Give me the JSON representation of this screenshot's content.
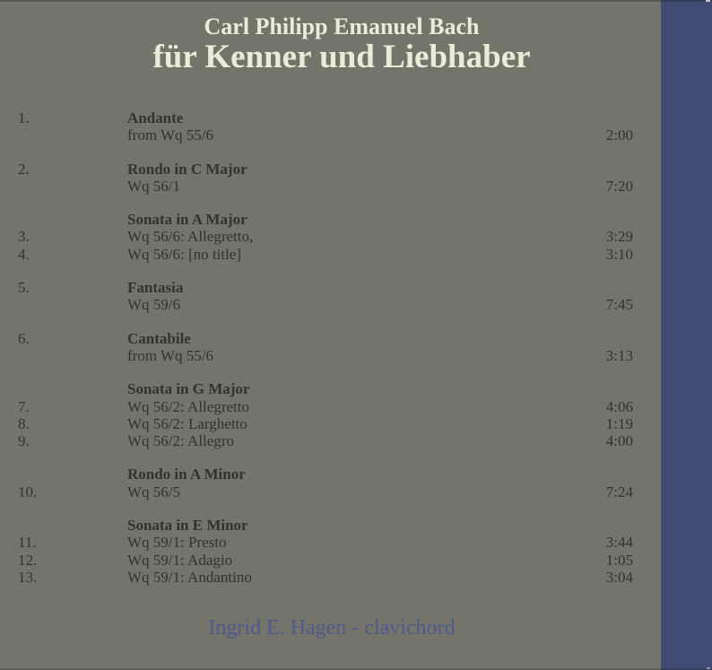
{
  "album": {
    "artist_line": "Carl Philipp Emanuel Bach",
    "title_line": "für Kenner und Liebhaber",
    "credit": "Ingrid E. Hagen - clavichord"
  },
  "colors": {
    "background": "#74746a",
    "stripe": "#404a72",
    "title_text": "#e9ecd8",
    "track_text": "#32332c",
    "credit_text": "#4e5a8e"
  },
  "blocks": [
    {
      "heading": {
        "number": "1.",
        "title": "Andante"
      },
      "rows": [
        {
          "number": "",
          "text": "from Wq 55/6",
          "time": "2:00"
        }
      ]
    },
    {
      "heading": {
        "number": "2.",
        "title": "Rondo in C Major"
      },
      "rows": [
        {
          "number": "",
          "text": "Wq 56/1",
          "time": "7:20"
        }
      ]
    },
    {
      "heading": {
        "number": "",
        "title": "Sonata in A Major"
      },
      "rows": [
        {
          "number": "3.",
          "text": "Wq 56/6: Allegretto,",
          "time": "3:29"
        },
        {
          "number": "4.",
          "text": "Wq 56/6: [no title]",
          "time": "3:10"
        }
      ]
    },
    {
      "heading": {
        "number": "5.",
        "title": "Fantasia"
      },
      "rows": [
        {
          "number": "",
          "text": "Wq 59/6",
          "time": "7:45"
        }
      ]
    },
    {
      "heading": {
        "number": "6.",
        "title": "Cantabile"
      },
      "rows": [
        {
          "number": "",
          "text": "from Wq 55/6",
          "time": "3:13"
        }
      ]
    },
    {
      "heading": {
        "number": "",
        "title": "Sonata in G Major"
      },
      "rows": [
        {
          "number": "7.",
          "text": "Wq 56/2: Allegretto",
          "time": "4:06"
        },
        {
          "number": "8.",
          "text": "Wq 56/2: Larghetto",
          "time": "1:19"
        },
        {
          "number": "9.",
          "text": "Wq 56/2: Allegro",
          "time": "4:00"
        }
      ]
    },
    {
      "heading": {
        "number": "",
        "title": "Rondo in A Minor"
      },
      "rows": [
        {
          "number": "10.",
          "text": "Wq 56/5",
          "time": "7:24"
        }
      ]
    },
    {
      "heading": {
        "number": "",
        "title": "Sonata in E Minor"
      },
      "rows": [
        {
          "number": "11.",
          "text": "Wq 59/1: Presto",
          "time": "3:44"
        },
        {
          "number": "12.",
          "text": "Wq 59/1: Adagio",
          "time": "1:05"
        },
        {
          "number": "13.",
          "text": "Wq 59/1: Andantino",
          "time": "3:04"
        }
      ]
    }
  ]
}
